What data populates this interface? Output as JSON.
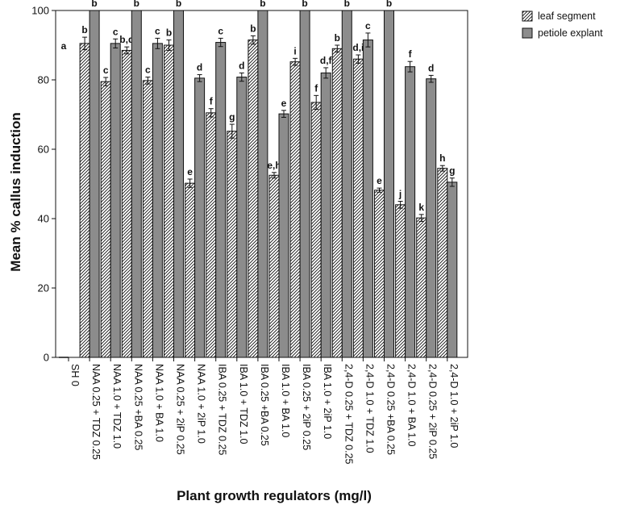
{
  "chart_data": {
    "type": "bar",
    "xlabel": "Plant growth regulators  (mg/l)",
    "ylabel": "Mean % callus induction",
    "ylim": [
      0,
      100
    ],
    "yticks": [
      0,
      20,
      40,
      60,
      80,
      100
    ],
    "grid": false,
    "legend_position": "top-right, outside plot",
    "categories": [
      "SH 0",
      "NAA 0.25 + TDZ 0.25",
      "NAA 1.0 + TDZ 1.0",
      "NAA 0.25 +BA 0.25",
      "NAA 1.0 + BA 1.0",
      "NAA 0.25 + 2iP 0.25",
      "NAA 1.0 + 2iP 1.0",
      "IBA 0.25 + TDZ 0.25",
      "IBA 1.0 + TDZ 1.0",
      "IBA 0.25 +BA 0.25",
      "IBA 1.0 + BA 1.0",
      "IBA 0.25 + 2iP 0.25",
      "IBA 1.0 + 2iP 1.0",
      "2,4-D 0.25 + TDZ 0.25",
      "2,4-D 1.0 + TDZ 1.0",
      "2,4-D 0.25 +BA 0.25",
      "2,4-D 1.0 + BA 1.0",
      "2,4-D 0.25 + 2iP 0.25",
      "2,4-D 1.0 + 2iP 1.0"
    ],
    "series": [
      {
        "name": "leaf segment",
        "pattern": "hatched",
        "values": [
          0,
          90.5,
          79.5,
          88.5,
          79.8,
          90.0,
          50.2,
          70.5,
          65.2,
          91.5,
          52.5,
          85.2,
          73.5,
          89.0,
          86.0,
          48.2,
          44.0,
          40.2,
          54.5
        ],
        "errors": [
          0,
          1.8,
          1.2,
          1.0,
          1.0,
          1.5,
          1.2,
          1.2,
          2.0,
          1.2,
          0.8,
          1.0,
          2.0,
          1.0,
          1.2,
          0.6,
          1.0,
          1.0,
          0.8
        ],
        "letters": [
          "a",
          "b",
          "c",
          "b,d",
          "c",
          "b",
          "e",
          "f",
          "g",
          "b",
          "e,h",
          "i",
          "f",
          "b",
          "d,i",
          "e",
          "j",
          "k",
          "h"
        ]
      },
      {
        "name": "petiole explant",
        "pattern": "solid",
        "color": "#8c8c8c",
        "values": [
          null,
          100,
          90.5,
          100,
          90.5,
          100,
          80.5,
          90.8,
          80.8,
          100,
          70.2,
          100,
          82.0,
          100,
          91.5,
          100,
          83.8,
          80.3,
          50.5
        ],
        "errors": [
          0,
          0,
          1.3,
          0,
          1.5,
          0,
          1.0,
          1.2,
          1.2,
          0,
          1.0,
          0,
          1.5,
          0,
          2.0,
          0,
          1.5,
          1.0,
          1.2
        ],
        "letters": [
          "",
          "b",
          "c",
          "b",
          "c",
          "b",
          "d",
          "c",
          "d",
          "b",
          "e",
          "b",
          "d,f",
          "b",
          "c",
          "b",
          "f",
          "d",
          "g"
        ]
      }
    ]
  }
}
